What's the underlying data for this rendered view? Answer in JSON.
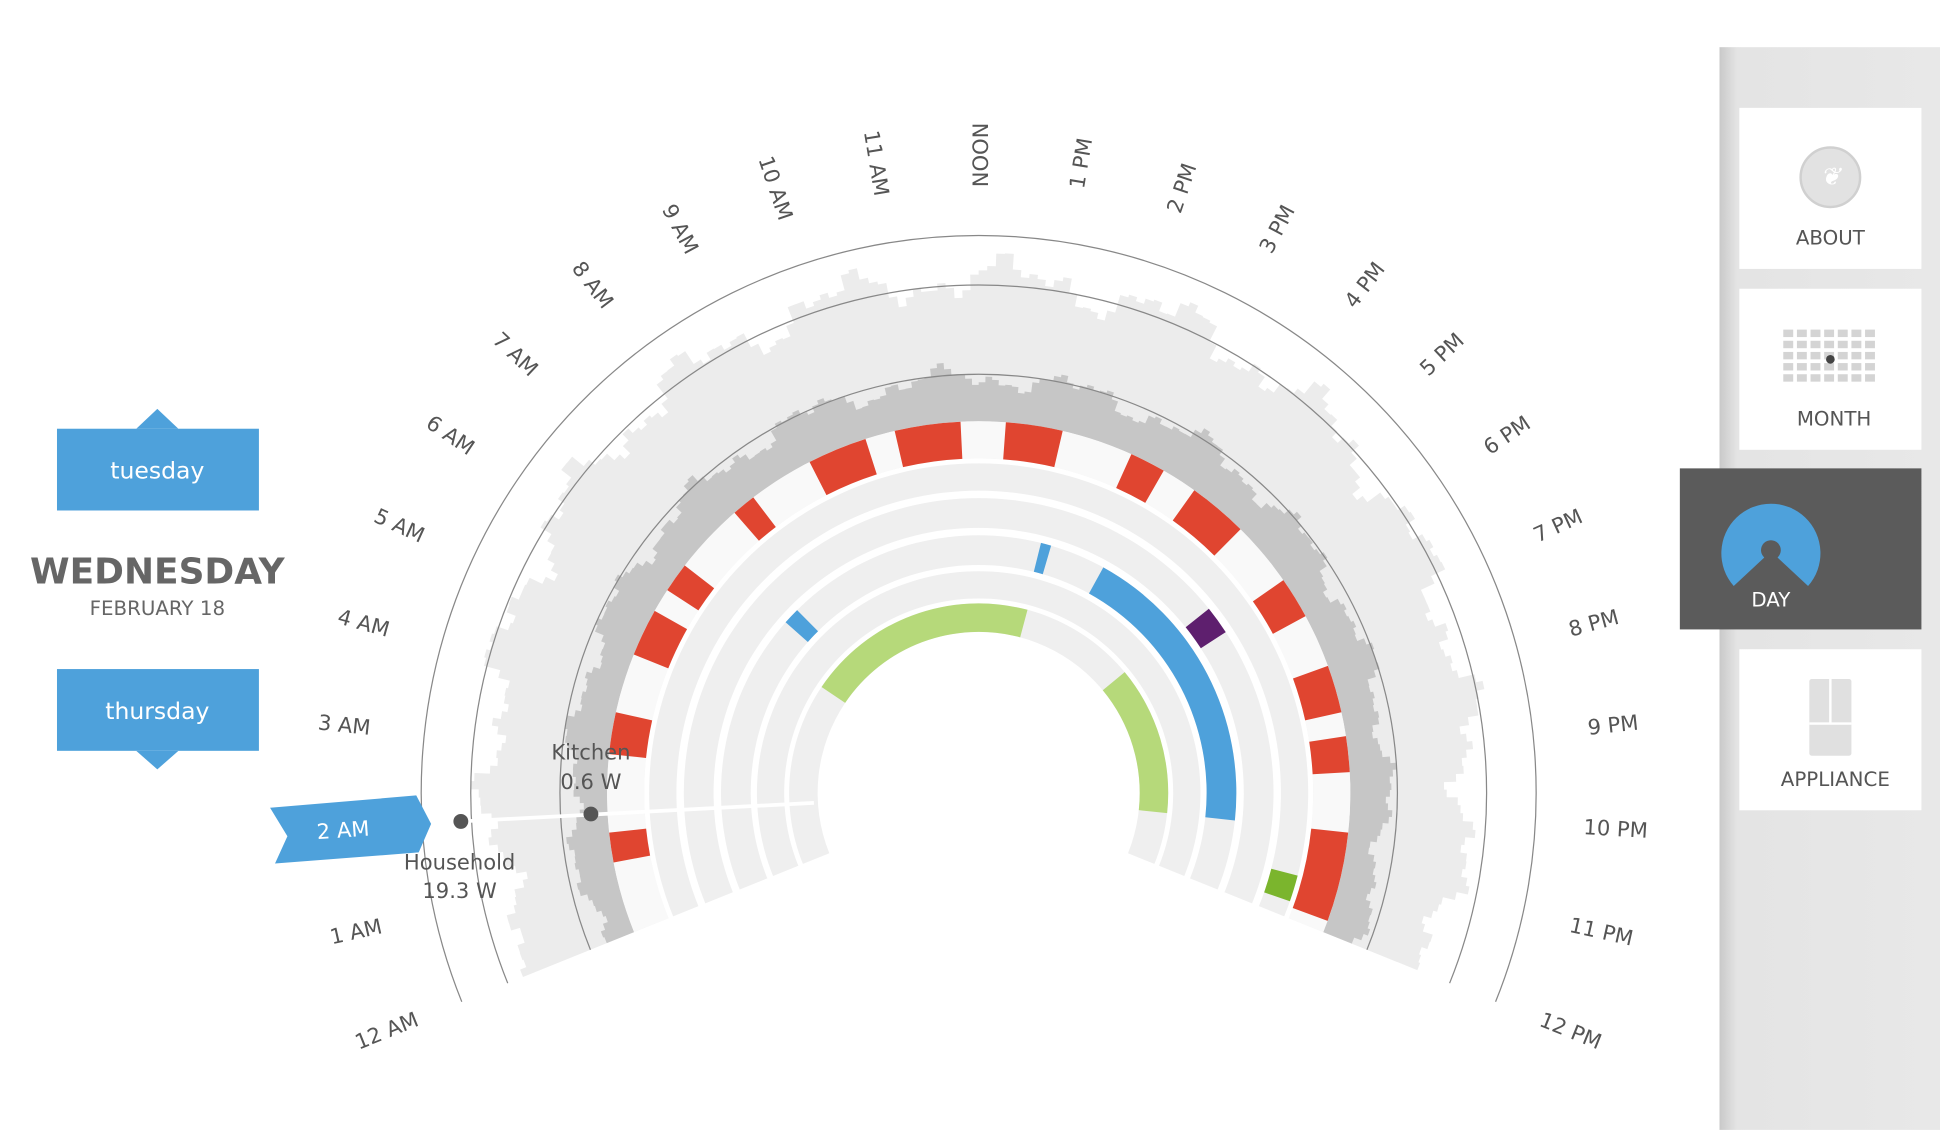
{
  "navigation": {
    "previous_day": "tuesday",
    "current_day": "WEDNESDAY",
    "current_date": "FEBRUARY 18",
    "next_day": "thursday"
  },
  "clock": {
    "hour_labels": [
      "12 AM",
      "1 AM",
      "2 AM",
      "3 AM",
      "4 AM",
      "5 AM",
      "6 AM",
      "7 AM",
      "8 AM",
      "9 AM",
      "10 AM",
      "11 AM",
      "NOON",
      "1 PM",
      "2 PM",
      "3 PM",
      "4 PM",
      "5 PM",
      "6 PM",
      "7 PM",
      "8 PM",
      "9 PM",
      "10 PM",
      "11 PM",
      "12 PM"
    ],
    "selected_hour_index": 2
  },
  "readouts": [
    {
      "label": "Kitchen",
      "value": "0.6 W"
    },
    {
      "label": "Household",
      "value": "19.3 W"
    }
  ],
  "sidebar": {
    "items": [
      {
        "label": "ABOUT",
        "selected": false
      },
      {
        "label": "MONTH",
        "selected": false
      },
      {
        "label": "DAY",
        "selected": true
      },
      {
        "label": "APPLIANCE",
        "selected": false
      }
    ]
  }
}
